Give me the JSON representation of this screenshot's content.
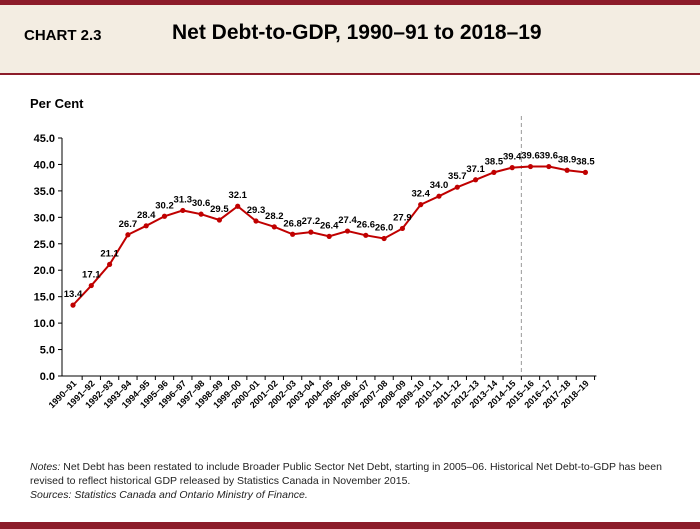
{
  "header": {
    "chart_label": "CHART 2.3",
    "title": "Net Debt-to-GDP, 1990–91 to 2018–19"
  },
  "colors": {
    "accent": "#8c1c2a",
    "header_bg": "#f3ede2",
    "series": "#c00000"
  },
  "chart_data": {
    "type": "line",
    "ylabel": "Per Cent",
    "xlabel": "",
    "ylim": [
      0,
      45
    ],
    "yticks": [
      "0.0",
      "5.0",
      "10.0",
      "15.0",
      "20.0",
      "25.0",
      "30.0",
      "35.0",
      "40.0",
      "45.0"
    ],
    "grid": false,
    "categories": [
      "1990–91",
      "1991–92",
      "1992–93",
      "1993–94",
      "1994–95",
      "1995–96",
      "1996–97",
      "1997–98",
      "1998–99",
      "1999–00",
      "2000–01",
      "2001–02",
      "2002–03",
      "2003–04",
      "2004–05",
      "2005–06",
      "2006–07",
      "2007–08",
      "2008–09",
      "2009–10",
      "2010–11",
      "2011–12",
      "2012–13",
      "2013–14",
      "2014–15",
      "2015–16",
      "2016–17",
      "2017–18",
      "2018–19"
    ],
    "values": [
      13.4,
      17.1,
      21.1,
      26.7,
      28.4,
      30.2,
      31.3,
      30.6,
      29.5,
      32.1,
      29.3,
      28.2,
      26.8,
      27.2,
      26.4,
      27.4,
      26.6,
      26.0,
      27.9,
      32.4,
      34.0,
      35.7,
      37.1,
      38.5,
      39.4,
      39.6,
      39.6,
      38.9,
      38.5
    ],
    "value_labels": [
      "13.4",
      "17.1",
      "21.1",
      "26.7",
      "28.4",
      "30.2",
      "31.3",
      "30.6",
      "29.5",
      "32.1",
      "29.3",
      "28.2",
      "26.8",
      "27.2",
      "26.4",
      "27.4",
      "26.6",
      "26.0",
      "27.9",
      "32.4",
      "34.0",
      "35.7",
      "37.1",
      "38.5",
      "39.4",
      "39.6",
      "39.6",
      "38.9",
      "38.5"
    ],
    "divider_between": [
      "2014–15",
      "2015–16"
    ]
  },
  "notes": {
    "notes_label": "Notes:",
    "notes_text": " Net Debt has been restated to include Broader Public Sector Net Debt, starting in 2005–06. Historical Net Debt-to-GDP has been revised to reflect historical GDP released by Statistics Canada in November 2015.",
    "sources_label": "Sources:",
    "sources_text": " Statistics Canada and Ontario Ministry of Finance."
  }
}
